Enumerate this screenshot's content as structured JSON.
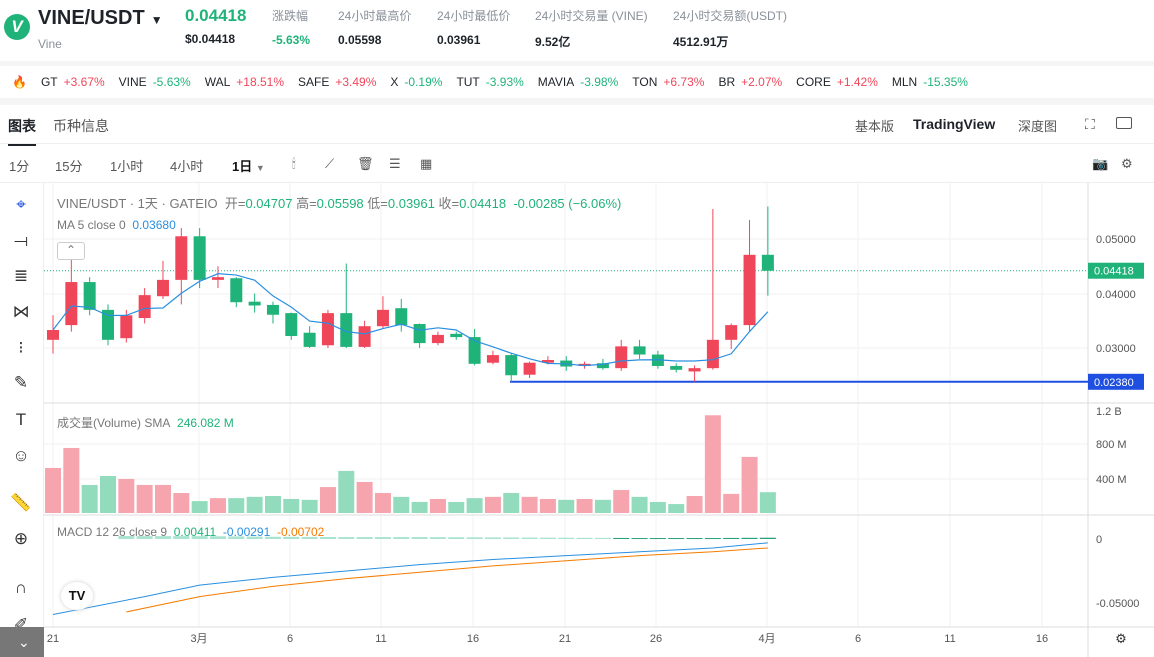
{
  "header": {
    "pair": "VINE/USDT",
    "name": "Vine",
    "price": "0.04418",
    "price_usd": "$0.04418",
    "stats": [
      {
        "label": "涨跌幅",
        "value": "-5.63%"
      },
      {
        "label": "24小时最高价",
        "value": "0.05598"
      },
      {
        "label": "24小时最低价",
        "value": "0.03961"
      },
      {
        "label": "24小时交易量 (VINE)",
        "value": "9.52亿"
      },
      {
        "label": "24小时交易额(USDT)",
        "value": "4512.91万"
      }
    ]
  },
  "ticker": [
    {
      "s": "GT",
      "c": "+3.67%"
    },
    {
      "s": "VINE",
      "c": "-5.63%"
    },
    {
      "s": "WAL",
      "c": "+18.51%"
    },
    {
      "s": "SAFE",
      "c": "+3.49%"
    },
    {
      "s": "X",
      "c": "-0.19%"
    },
    {
      "s": "TUT",
      "c": "-3.93%"
    },
    {
      "s": "MAVIA",
      "c": "-3.98%"
    },
    {
      "s": "TON",
      "c": "+6.73%"
    },
    {
      "s": "BR",
      "c": "+2.07%"
    },
    {
      "s": "CORE",
      "c": "+1.42%"
    },
    {
      "s": "MLN",
      "c": "-15.35%"
    }
  ],
  "tabs": {
    "chart": "图表",
    "info": "币种信息",
    "basic": "基本版",
    "tv": "TradingView",
    "depth": "深度图"
  },
  "intervals": [
    "1分",
    "15分",
    "1小时",
    "4小时",
    "1日"
  ],
  "legend": {
    "title": "VINE/USDT · 1天 · GATEIO",
    "o_l": "开=",
    "o": "0.04707",
    "h_l": "高=",
    "h": "0.05598",
    "l_l": "低=",
    "l": "0.03961",
    "c_l": "收=",
    "c": "0.04418",
    "chg": "-0.00285 (−6.06%)",
    "ma_label": "MA 5 close 0",
    "ma_val": "0.03680",
    "vol_label": "成交量(Volume) SMA",
    "vol_val": "246.082 M",
    "macd_label": "MACD 12 26 close 9",
    "macd_hist": "0.00411",
    "macd_dif": "-0.00291",
    "macd_dea": "-0.00702"
  },
  "colors": {
    "up": "#f0465a",
    "down": "#1fb37a",
    "ma": "#2a8fe0",
    "dea": "#f57c00",
    "line": "#1e4fe0"
  },
  "price_axis": [
    "0.05000",
    "0.04000",
    "0.03000"
  ],
  "current_price": "0.04418",
  "line_price": "0.02380",
  "vol_axis": [
    "1.2 B",
    "800 M",
    "400 M"
  ],
  "macd_axis": [
    "0",
    "-0.05000"
  ],
  "date_axis": [
    "21",
    "3月",
    "6",
    "11",
    "16",
    "21",
    "26",
    "4月",
    "6",
    "11",
    "16"
  ],
  "chart_data": {
    "type": "candlestick",
    "ohlc": [
      [
        0.0315,
        0.036,
        0.029,
        0.0333
      ],
      [
        0.0342,
        0.047,
        0.033,
        0.0421
      ],
      [
        0.0421,
        0.043,
        0.036,
        0.037
      ],
      [
        0.037,
        0.038,
        0.0305,
        0.0315
      ],
      [
        0.0318,
        0.037,
        0.031,
        0.036
      ],
      [
        0.0355,
        0.041,
        0.0345,
        0.0397
      ],
      [
        0.0395,
        0.046,
        0.039,
        0.0425
      ],
      [
        0.0425,
        0.052,
        0.038,
        0.0505
      ],
      [
        0.0505,
        0.052,
        0.041,
        0.0425
      ],
      [
        0.0425,
        0.045,
        0.041,
        0.043
      ],
      [
        0.0428,
        0.043,
        0.0375,
        0.0384
      ],
      [
        0.0385,
        0.04,
        0.0365,
        0.0378
      ],
      [
        0.0379,
        0.0385,
        0.0345,
        0.0361
      ],
      [
        0.0364,
        0.0365,
        0.0315,
        0.0322
      ],
      [
        0.0328,
        0.034,
        0.03,
        0.0302
      ],
      [
        0.0305,
        0.037,
        0.03,
        0.0364
      ],
      [
        0.0364,
        0.0455,
        0.03,
        0.0302
      ],
      [
        0.0302,
        0.035,
        0.03,
        0.034
      ],
      [
        0.034,
        0.0395,
        0.0335,
        0.037
      ],
      [
        0.0373,
        0.039,
        0.033,
        0.0342
      ],
      [
        0.0344,
        0.0345,
        0.03,
        0.0309
      ],
      [
        0.0309,
        0.033,
        0.0305,
        0.0324
      ],
      [
        0.0326,
        0.033,
        0.0315,
        0.032
      ],
      [
        0.032,
        0.0335,
        0.0268,
        0.0271
      ],
      [
        0.0273,
        0.0295,
        0.027,
        0.0287
      ],
      [
        0.0287,
        0.029,
        0.0238,
        0.025
      ],
      [
        0.0251,
        0.0275,
        0.0245,
        0.0273
      ],
      [
        0.0273,
        0.0285,
        0.027,
        0.0278
      ],
      [
        0.0277,
        0.0285,
        0.0258,
        0.0266
      ],
      [
        0.0267,
        0.0275,
        0.0262,
        0.0271
      ],
      [
        0.0272,
        0.028,
        0.026,
        0.0263
      ],
      [
        0.0263,
        0.0315,
        0.0258,
        0.0303
      ],
      [
        0.0303,
        0.0315,
        0.028,
        0.0288
      ],
      [
        0.0288,
        0.0295,
        0.0262,
        0.0267
      ],
      [
        0.0267,
        0.0272,
        0.0255,
        0.026
      ],
      [
        0.0257,
        0.0268,
        0.0238,
        0.0263
      ],
      [
        0.0263,
        0.0555,
        0.026,
        0.0315
      ],
      [
        0.0315,
        0.0345,
        0.0298,
        0.0342
      ],
      [
        0.0342,
        0.0535,
        0.033,
        0.0471
      ],
      [
        0.0471,
        0.05598,
        0.0396,
        0.04418
      ]
    ],
    "volume_m": [
      530,
      765,
      330,
      435,
      400,
      330,
      330,
      235,
      140,
      175,
      175,
      190,
      200,
      165,
      155,
      305,
      495,
      365,
      235,
      190,
      130,
      165,
      130,
      175,
      190,
      235,
      190,
      165,
      155,
      165,
      155,
      270,
      190,
      130,
      105,
      200,
      1150,
      225,
      660,
      245
    ],
    "macd_dif": [
      [
        0,
        -0.059
      ],
      [
        5,
        -0.045
      ],
      [
        8,
        -0.036
      ],
      [
        12,
        -0.03
      ],
      [
        16,
        -0.025
      ],
      [
        20,
        -0.02
      ],
      [
        24,
        -0.016
      ],
      [
        28,
        -0.013
      ],
      [
        32,
        -0.01
      ],
      [
        36,
        -0.007
      ],
      [
        39,
        -0.003
      ]
    ],
    "macd_dea": [
      [
        4,
        -0.057
      ],
      [
        8,
        -0.045
      ],
      [
        12,
        -0.037
      ],
      [
        16,
        -0.031
      ],
      [
        20,
        -0.026
      ],
      [
        24,
        -0.021
      ],
      [
        28,
        -0.017
      ],
      [
        32,
        -0.013
      ],
      [
        36,
        -0.01
      ],
      [
        39,
        -0.007
      ]
    ]
  }
}
